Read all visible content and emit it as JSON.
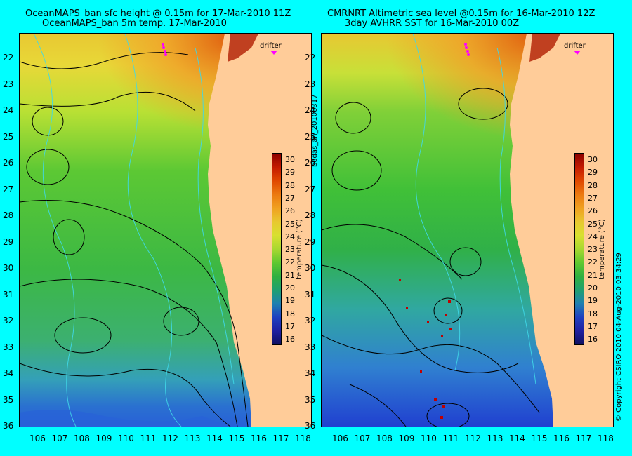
{
  "panels": [
    {
      "title_line1": "OceanMAPS_ban sfc height @ 0.15m for 17-Mar-2010 11Z",
      "title_line2": "OceanMAPS_ban 5m temp. 17-Mar-2010"
    },
    {
      "title_line1": "CMRNRT Altimetric sea level  @0.15m  for 16-Mar-2010 12Z",
      "title_line2": "3day AVHRR SST for 16-Mar-2010 00Z"
    }
  ],
  "x_ticks": [
    "106",
    "107",
    "108",
    "109",
    "110",
    "111",
    "112",
    "113",
    "114",
    "115",
    "116",
    "117",
    "118"
  ],
  "y_ticks": [
    "22",
    "23",
    "24",
    "25",
    "26",
    "27",
    "28",
    "29",
    "30",
    "31",
    "32",
    "33",
    "34",
    "35",
    "36"
  ],
  "colorbar": {
    "labels": [
      "30",
      "29",
      "28",
      "27",
      "26",
      "25",
      "24",
      "23",
      "22",
      "21",
      "20",
      "19",
      "18",
      "17",
      "16"
    ],
    "unit": "temperature (°C)",
    "colors": [
      "#8b0000",
      "#c41a00",
      "#e04800",
      "#ec7a10",
      "#f0a020",
      "#e8c830",
      "#d8e030",
      "#a8d830",
      "#60c830",
      "#30b040",
      "#20a070",
      "#2080b0",
      "#2040c0",
      "#2020a0",
      "#101060"
    ]
  },
  "drifter_label": "drifter",
  "side_text": {
    "file_id": "bodas_an_20100317",
    "copyright": "© Copyright CSIRO 2010   04-Aug-2010 03:34:29"
  },
  "colors": {
    "background": "#00ffff",
    "land": "#ffcc99",
    "drifter": "#ff00ff"
  }
}
